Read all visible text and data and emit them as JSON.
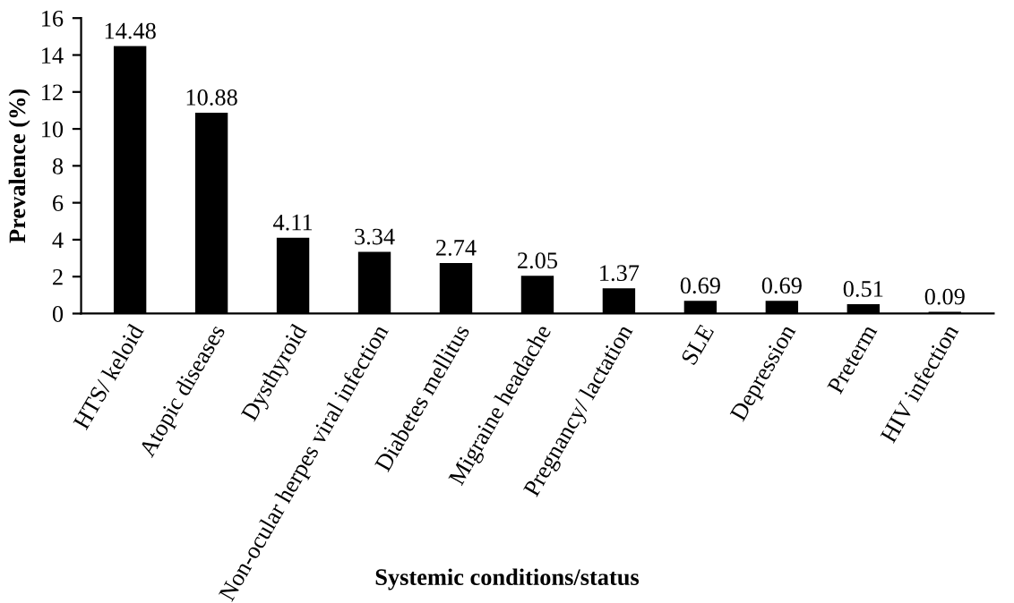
{
  "chart_data": {
    "type": "bar",
    "xlabel": "Systemic conditions/status",
    "ylabel": "Prevalence (%)",
    "categories": [
      "HTS/ keloid",
      "Atopic diseases",
      "Dysthyroid",
      "Non-ocular herpes viral infection",
      "Diabetes mellitus",
      "Migraine headache",
      "Pregnancy/ lactation",
      "SLE",
      "Depression",
      "Preterm",
      "HIV infection"
    ],
    "values": [
      14.48,
      10.88,
      4.11,
      3.34,
      2.74,
      2.05,
      1.37,
      0.69,
      0.69,
      0.51,
      0.09
    ],
    "color": "#000000",
    "ylim": [
      0,
      16
    ],
    "yticks": [
      0,
      2,
      4,
      6,
      8,
      10,
      12,
      14,
      16
    ],
    "data_labels": true,
    "grid": false,
    "legend": false
  }
}
